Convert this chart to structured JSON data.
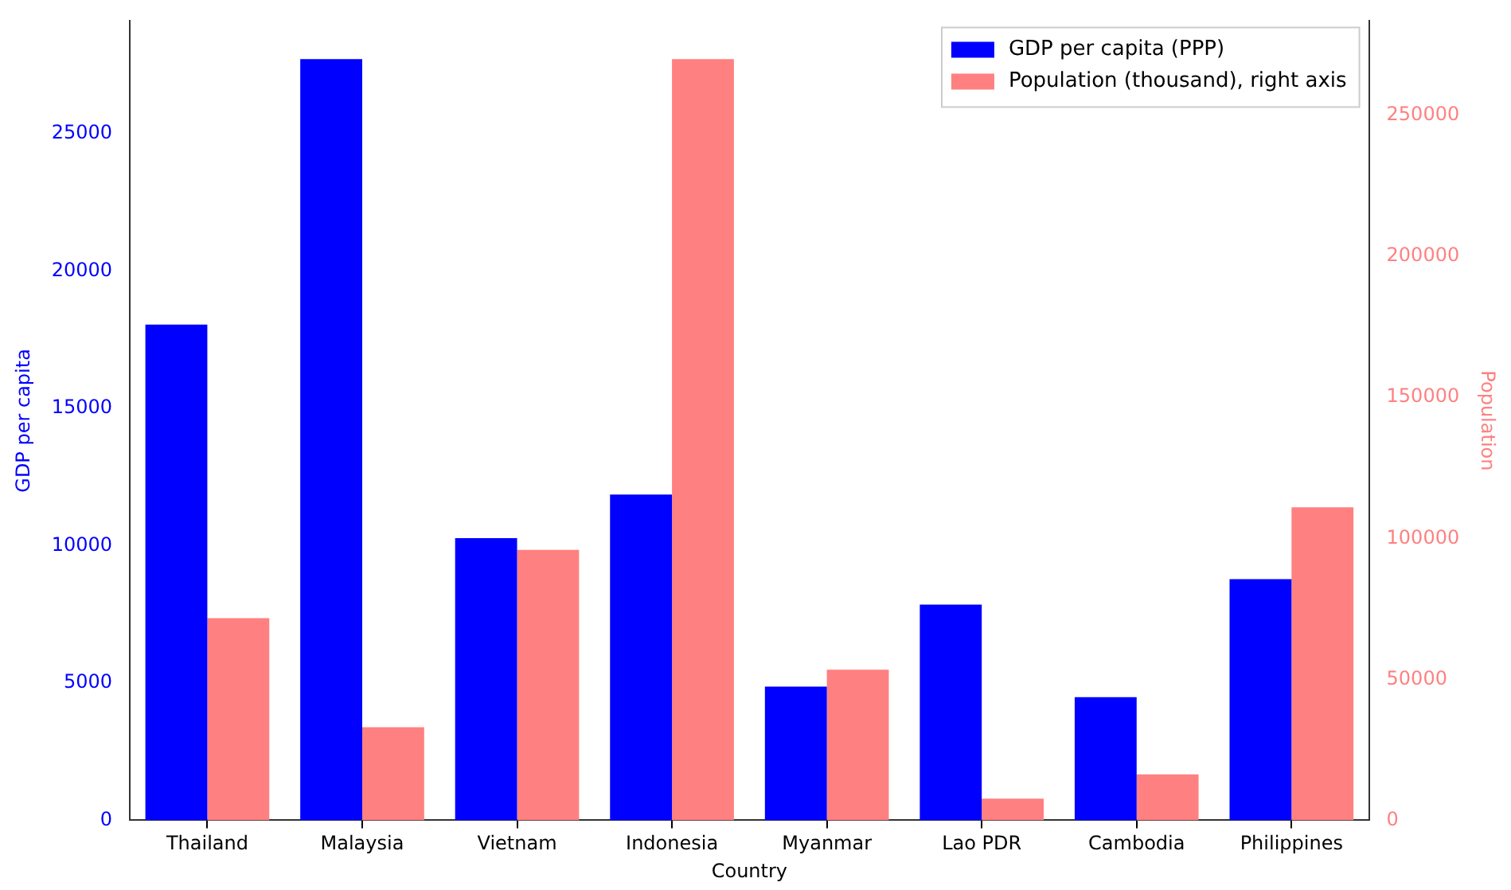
{
  "chart_data": {
    "type": "bar",
    "xlabel": "Country",
    "ylabel": "GDP per capita",
    "y2label": "Population",
    "categories": [
      "Thailand",
      "Malaysia",
      "Vietnam",
      "Indonesia",
      "Myanmar",
      "Lao PDR",
      "Cambodia",
      "Philippines"
    ],
    "series": [
      {
        "name": "GDP per capita (PPP)",
        "color": "#0000ff",
        "values": [
          18050,
          27710,
          10270,
          11860,
          4870,
          7850,
          4480,
          8780
        ]
      },
      {
        "name": "Population (thousand), right axis",
        "color": "#ff8080",
        "axis": "y2",
        "values": [
          71700,
          33000,
          95900,
          270000,
          53400,
          7700,
          16300,
          111000
        ]
      }
    ],
    "ylim": [
      0,
      29100
    ],
    "yticks": [
      0,
      5000,
      10000,
      15000,
      20000,
      25000
    ],
    "y2lim": [
      0,
      283500
    ],
    "y2ticks": [
      0,
      50000,
      100000,
      150000,
      200000,
      250000
    ],
    "grid": false,
    "legend": "top right"
  }
}
